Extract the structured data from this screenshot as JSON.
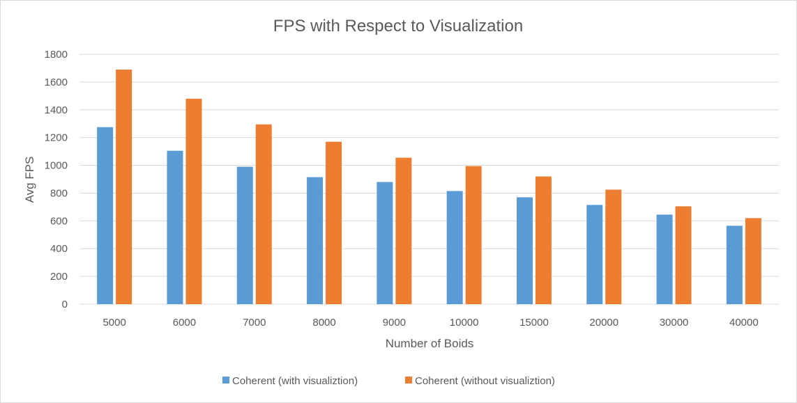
{
  "chart_data": {
    "type": "bar",
    "title": "FPS with Respect to Visualization",
    "xlabel": "Number of Boids",
    "ylabel": "Avg FPS",
    "categories": [
      "5000",
      "6000",
      "7000",
      "8000",
      "9000",
      "10000",
      "15000",
      "20000",
      "30000",
      "40000"
    ],
    "ylim": [
      0,
      1800
    ],
    "yticks": [
      0,
      200,
      400,
      600,
      800,
      1000,
      1200,
      1400,
      1600,
      1800
    ],
    "grid": true,
    "legend_position": "bottom",
    "series": [
      {
        "name": "Coherent (with visualiztion)",
        "color": "#5b9bd5",
        "values": [
          1275,
          1105,
          990,
          915,
          880,
          815,
          770,
          715,
          645,
          565
        ]
      },
      {
        "name": "Coherent (without visualiztion)",
        "color": "#ed7d31",
        "values": [
          1690,
          1480,
          1295,
          1170,
          1055,
          995,
          920,
          825,
          705,
          620
        ]
      }
    ]
  }
}
